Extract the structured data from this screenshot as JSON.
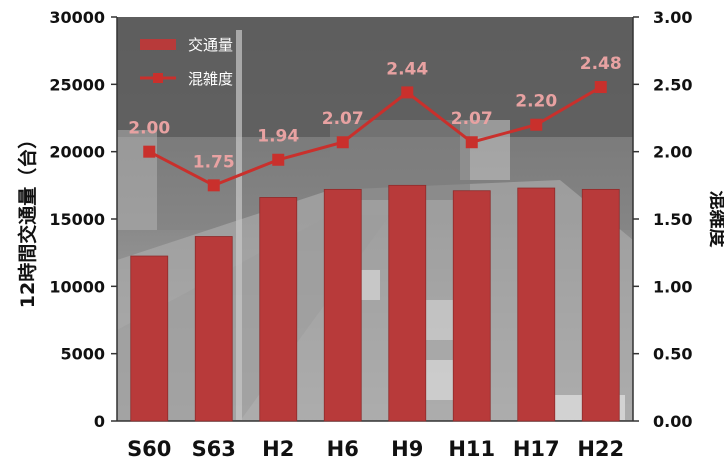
{
  "chart_data": {
    "type": "bar",
    "categories": [
      "S60",
      "S63",
      "H2",
      "H6",
      "H9",
      "H11",
      "H17",
      "H22"
    ],
    "series": [
      {
        "name": "交通量",
        "type": "bar",
        "axis": "left",
        "values": [
          12250,
          13700,
          16600,
          17200,
          17500,
          17100,
          17300,
          17200
        ]
      },
      {
        "name": "混雑度",
        "type": "line",
        "axis": "right",
        "values": [
          2.0,
          1.75,
          1.94,
          2.07,
          2.44,
          2.07,
          2.2,
          2.48
        ],
        "labels": [
          "2.00",
          "1.75",
          "1.94",
          "2.07",
          "2.44",
          "2.07",
          "2.20",
          "2.48"
        ]
      }
    ],
    "ylabel": "12時間交通量（台）",
    "y2label": "混雑度",
    "ylim": [
      0,
      30000
    ],
    "y2lim": [
      0,
      3.0
    ],
    "yticks": [
      "0",
      "5000",
      "10000",
      "15000",
      "20000",
      "25000",
      "30000"
    ],
    "y2ticks": [
      "0.00",
      "0.50",
      "1.00",
      "1.50",
      "2.00",
      "2.50",
      "3.00"
    ],
    "legend_position": "top-left",
    "grid": false,
    "background": "photo of congested road traffic",
    "colors": {
      "bar": "#b83a3a",
      "line": "#c9302c",
      "data_label": "#e8a2a2"
    }
  }
}
